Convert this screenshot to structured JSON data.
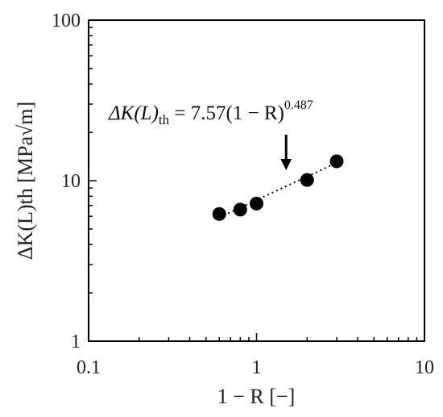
{
  "chart_data": {
    "type": "scatter",
    "xscale": "log",
    "yscale": "log",
    "xlim": [
      0.1,
      10
    ],
    "ylim": [
      1,
      100
    ],
    "xticks": [
      {
        "value": 0.1,
        "label": "0.1"
      },
      {
        "value": 1,
        "label": "1"
      },
      {
        "value": 10,
        "label": "10"
      }
    ],
    "yticks": [
      {
        "value": 1,
        "label": "1"
      },
      {
        "value": 10,
        "label": "10"
      },
      {
        "value": 100,
        "label": "100"
      }
    ],
    "xlabel": "1 − R [−]",
    "ylabel": "ΔK(L)th [MPa√m]",
    "grid": false,
    "points": [
      {
        "x": 0.6,
        "y": 6.2
      },
      {
        "x": 0.8,
        "y": 6.6
      },
      {
        "x": 1.0,
        "y": 7.2
      },
      {
        "x": 2.0,
        "y": 10.1
      },
      {
        "x": 3.0,
        "y": 13.2
      }
    ],
    "fit": {
      "coefficient": 7.57,
      "exponent": 0.487,
      "x_range": [
        0.6,
        3.0
      ],
      "style": "dotted"
    },
    "annotation": {
      "lhs": "ΔK(L)",
      "lhs_sub": "th",
      "rhs": " = 7.57(1 − R)",
      "rhs_sup": "0.487",
      "arrow_to_x": 1.5
    }
  }
}
